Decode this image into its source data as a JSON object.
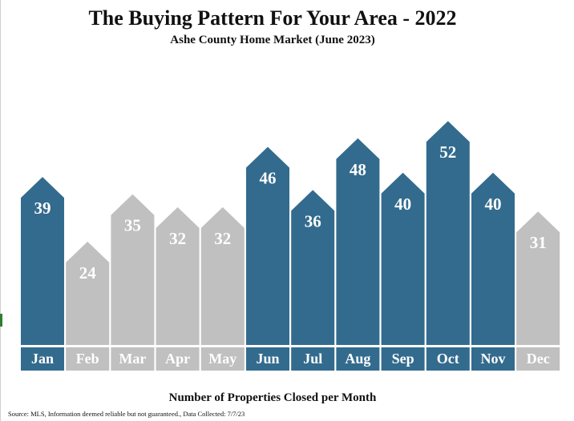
{
  "chart_data": {
    "type": "bar",
    "title": "The Buying Pattern For Your Area - 2022",
    "subtitle": "Ashe County Home Market (June 2023)",
    "xlabel": "Number of Properties Closed per Month",
    "ylabel": "",
    "categories": [
      "Jan",
      "Feb",
      "Mar",
      "Apr",
      "May",
      "Jun",
      "Jul",
      "Aug",
      "Sep",
      "Oct",
      "Nov",
      "Dec"
    ],
    "values": [
      39,
      24,
      35,
      32,
      32,
      46,
      36,
      48,
      40,
      52,
      40,
      31
    ],
    "highlighted": [
      true,
      false,
      false,
      false,
      false,
      true,
      true,
      true,
      true,
      true,
      true,
      false
    ],
    "colors": {
      "highlight": "#336b8e",
      "normal": "#c0c0c0",
      "label_text": "#ffffff"
    }
  },
  "source": "Source: MLS, Information deemed reliable but not guaranteed., Data Collected: 7/7/23"
}
